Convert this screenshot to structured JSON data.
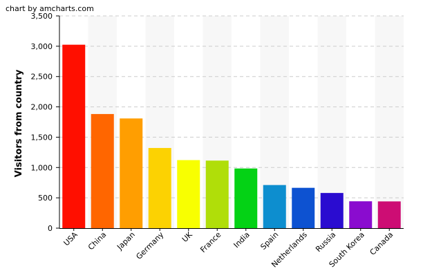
{
  "credit": "chart by amcharts.com",
  "chart_data": {
    "type": "bar",
    "categories": [
      "USA",
      "China",
      "Japan",
      "Germany",
      "UK",
      "France",
      "India",
      "Spain",
      "Netherlands",
      "Russia",
      "South Korea",
      "Canada"
    ],
    "values": [
      3025,
      1882,
      1809,
      1322,
      1122,
      1114,
      984,
      711,
      665,
      580,
      443,
      441
    ],
    "colors": [
      "#FF0F00",
      "#FF6600",
      "#FF9E01",
      "#FCD202",
      "#F8FF01",
      "#B0DE09",
      "#04D215",
      "#0D8ECF",
      "#0D52D1",
      "#2A0CD0",
      "#8A0CCF",
      "#CD0D74"
    ],
    "ylabel": "Visitors from country",
    "xlabel": "",
    "ylim": [
      0,
      3500
    ],
    "yticks": [
      0,
      500,
      1000,
      1500,
      2000,
      2500,
      3000,
      3500
    ],
    "ytick_labels": [
      "0",
      "500",
      "1,000",
      "1,500",
      "2,000",
      "2,500",
      "3,000",
      "3,500"
    ],
    "grid": true,
    "alternate_column_shading": true
  }
}
